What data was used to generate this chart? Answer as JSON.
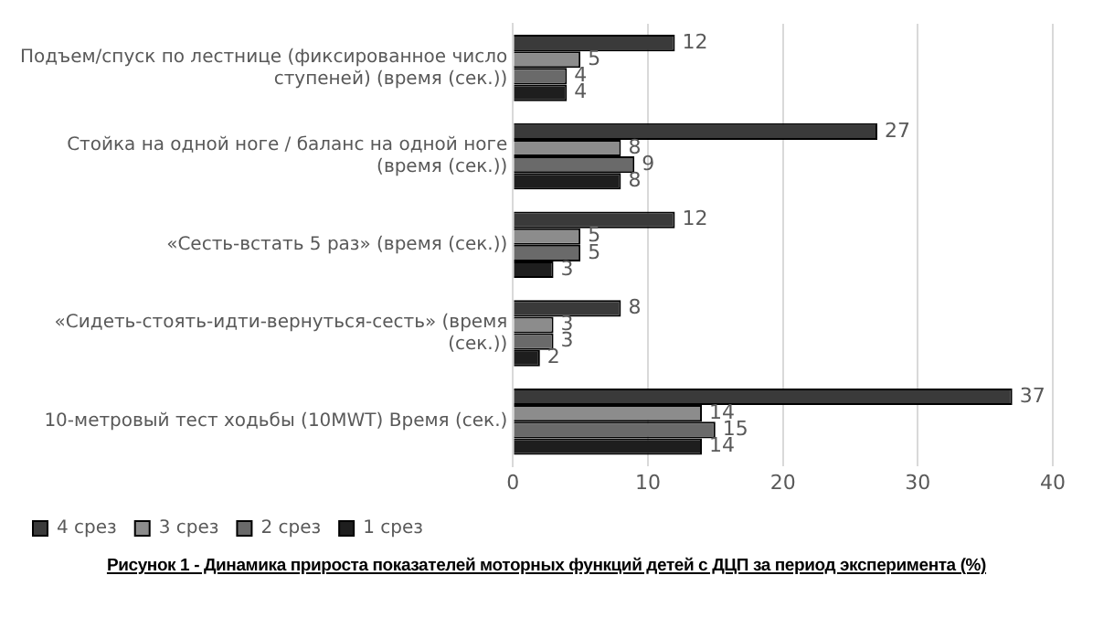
{
  "chart_data": {
    "type": "bar",
    "orientation": "horizontal",
    "title": "Рисунок 1 - Динамика прироста показателей моторных функций детей с ДЦП за период эксперимента (%)",
    "categories": [
      "Подъем/спуск по лестнице (фиксированное число ступеней) (время (сек.))",
      "Стойка на одной ноге / баланс на одной ноге (время (сек.))",
      "«Сесть-встать 5 раз» (время (сек.))",
      "«Сидеть-стоять-идти-вернуться-сесть» (время (сек.))",
      "10-метровый тест ходьбы (10MWT) Время (сек.)"
    ],
    "series": [
      {
        "name": "4 срез",
        "color": "#3a3a3a",
        "values": [
          12,
          27,
          12,
          8,
          37
        ]
      },
      {
        "name": "3 срез",
        "color": "#8c8c8c",
        "values": [
          5,
          8,
          5,
          3,
          14
        ]
      },
      {
        "name": "2 срез",
        "color": "#6a6a6a",
        "values": [
          4,
          9,
          5,
          3,
          15
        ]
      },
      {
        "name": "1 срез",
        "color": "#1e1e1e",
        "values": [
          4,
          8,
          3,
          2,
          14
        ]
      }
    ],
    "xlim": [
      0,
      40
    ],
    "xticks": [
      0,
      10,
      20,
      30,
      40
    ],
    "grid": "x",
    "legend": "bottom left",
    "data_labels": true
  }
}
